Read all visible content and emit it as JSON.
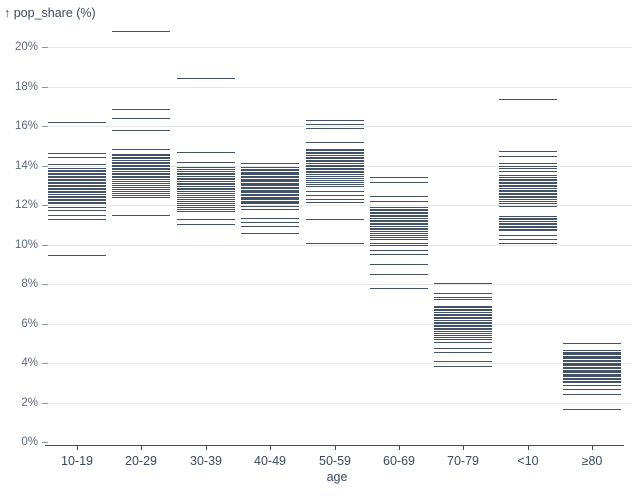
{
  "chart_data": {
    "type": "scatter",
    "mark": "tick-y",
    "title": "↑ pop_share (%)",
    "xlabel": "age",
    "ylabel": "pop_share (%)",
    "ylim": [
      0,
      21.3
    ],
    "grid": true,
    "y_ticks": [
      0,
      2,
      4,
      6,
      8,
      10,
      12,
      14,
      16,
      18,
      20
    ],
    "y_tick_labels": [
      "0%",
      "2%",
      "4%",
      "6%",
      "8%",
      "10%",
      "12%",
      "14%",
      "16%",
      "18%",
      "20%"
    ],
    "categories": [
      "10-19",
      "20-29",
      "30-39",
      "40-49",
      "50-59",
      "60-69",
      "70-79",
      "<10",
      "≥80"
    ],
    "series": [
      {
        "name": "10-19",
        "values": [
          16.2,
          14.62,
          14.45,
          14.08,
          13.86,
          13.78,
          13.7,
          13.62,
          13.55,
          13.47,
          13.4,
          13.32,
          13.25,
          13.17,
          13.1,
          13.02,
          12.95,
          12.87,
          12.8,
          12.72,
          12.64,
          12.56,
          12.48,
          12.4,
          12.32,
          12.24,
          12.16,
          12.09,
          11.9,
          11.75,
          11.5,
          11.3,
          9.47
        ]
      },
      {
        "name": "20-29",
        "values": [
          20.82,
          16.88,
          16.38,
          15.8,
          14.85,
          14.6,
          14.52,
          14.44,
          14.36,
          14.28,
          14.2,
          14.12,
          14.04,
          13.96,
          13.88,
          13.8,
          13.72,
          13.64,
          13.56,
          13.48,
          13.4,
          13.3,
          13.2,
          13.1,
          13.0,
          12.9,
          12.8,
          12.7,
          12.6,
          12.5,
          12.4,
          11.48
        ]
      },
      {
        "name": "30-39",
        "values": [
          18.43,
          14.7,
          14.2,
          13.9,
          13.81,
          13.73,
          13.64,
          13.56,
          13.47,
          13.39,
          13.3,
          13.22,
          13.13,
          13.05,
          12.96,
          12.88,
          12.79,
          12.71,
          12.6,
          12.5,
          12.4,
          12.3,
          12.2,
          12.1,
          12.0,
          11.9,
          11.8,
          11.7,
          11.3,
          11.05
        ]
      },
      {
        "name": "40-49",
        "values": [
          14.13,
          13.9,
          13.83,
          13.76,
          13.69,
          13.62,
          13.55,
          13.48,
          13.41,
          13.34,
          13.27,
          13.2,
          13.13,
          13.06,
          12.99,
          12.92,
          12.85,
          12.78,
          12.71,
          12.64,
          12.57,
          12.5,
          12.43,
          12.36,
          12.29,
          12.22,
          12.15,
          12.08,
          11.94,
          11.78,
          11.34,
          11.15,
          10.95,
          10.6
        ]
      },
      {
        "name": "50-59",
        "values": [
          16.3,
          16.1,
          15.88,
          15.2,
          14.85,
          14.77,
          14.69,
          14.61,
          14.53,
          14.45,
          14.37,
          14.29,
          14.21,
          14.13,
          14.05,
          13.97,
          13.89,
          13.81,
          13.73,
          13.65,
          13.55,
          13.45,
          13.35,
          13.25,
          13.15,
          13.05,
          12.94,
          12.72,
          12.52,
          12.3,
          12.14,
          11.29,
          10.1
        ]
      },
      {
        "name": "60-69",
        "values": [
          13.4,
          13.15,
          12.45,
          12.2,
          11.9,
          11.82,
          11.74,
          11.66,
          11.58,
          11.5,
          11.42,
          11.34,
          11.26,
          11.18,
          11.1,
          11.02,
          10.94,
          10.86,
          10.78,
          10.7,
          10.6,
          10.5,
          10.4,
          10.3,
          10.1,
          9.95,
          9.7,
          9.5,
          9.0,
          8.5,
          7.78
        ]
      },
      {
        "name": "70-79",
        "values": [
          8.05,
          7.52,
          7.35,
          7.25,
          6.9,
          6.82,
          6.74,
          6.66,
          6.58,
          6.5,
          6.42,
          6.34,
          6.26,
          6.18,
          6.1,
          6.02,
          5.94,
          5.86,
          5.78,
          5.7,
          5.6,
          5.5,
          5.4,
          5.3,
          5.23,
          5.05,
          4.76,
          4.56,
          4.1,
          3.85
        ]
      },
      {
        "name": "<10",
        "values": [
          17.37,
          14.75,
          14.46,
          14.13,
          13.98,
          13.85,
          13.7,
          13.5,
          13.42,
          13.34,
          13.26,
          13.18,
          13.1,
          13.02,
          12.94,
          12.86,
          12.78,
          12.7,
          12.62,
          12.54,
          12.46,
          12.38,
          12.3,
          12.2,
          12.08,
          11.93,
          11.43,
          11.35,
          11.27,
          11.19,
          11.11,
          11.03,
          10.95,
          10.87,
          10.79,
          10.71,
          10.5,
          10.3,
          10.08
        ]
      },
      {
        "name": "≥80",
        "values": [
          5.03,
          4.65,
          4.58,
          4.51,
          4.44,
          4.37,
          4.3,
          4.23,
          4.16,
          4.09,
          4.02,
          3.95,
          3.88,
          3.81,
          3.74,
          3.67,
          3.6,
          3.53,
          3.46,
          3.39,
          3.32,
          3.25,
          3.18,
          3.11,
          3.05,
          2.87,
          2.7,
          2.45,
          1.65
        ]
      }
    ],
    "colors": {
      "tick": "#33435a",
      "grid": "#e4e7ea",
      "axis": "#3b4a5f",
      "y_label": "#5d6a79",
      "x_label": "#3b4a5f",
      "background": "#ffffff"
    },
    "legend": "none"
  }
}
